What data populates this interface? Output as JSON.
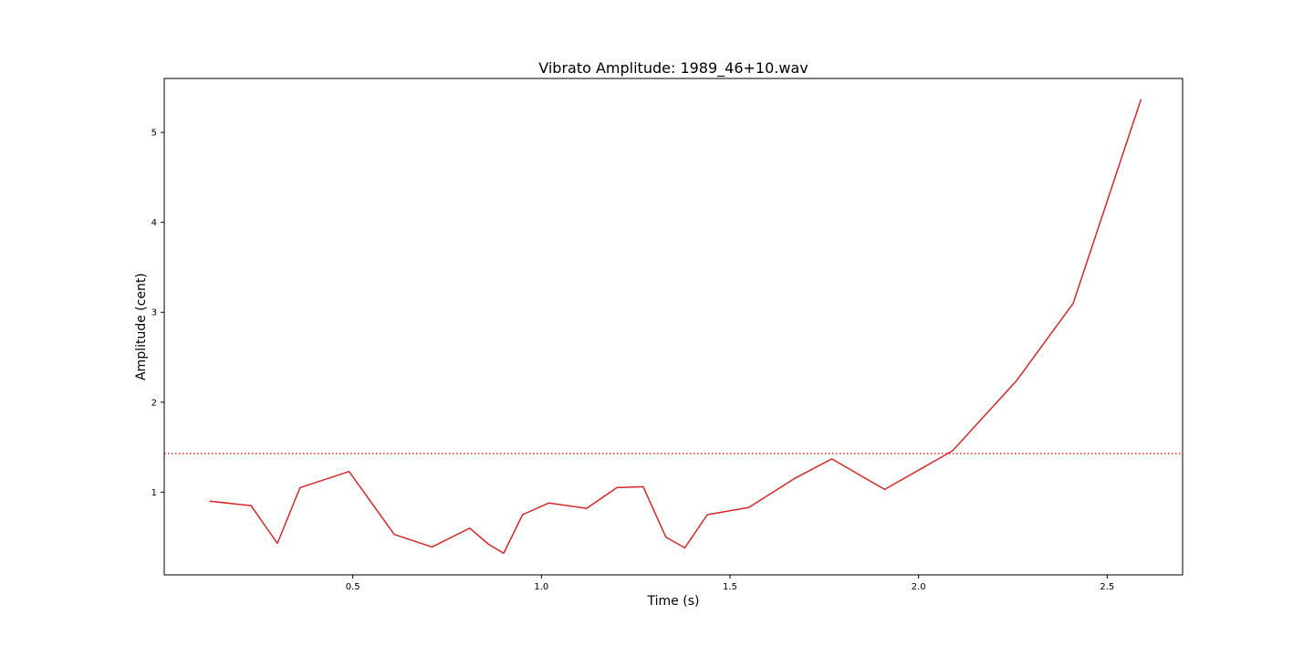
{
  "chart_data": {
    "type": "line",
    "title": "Vibrato Amplitude: 1989_46+10.wav",
    "xlabel": "Time (s)",
    "ylabel": "Amplitude (cent)",
    "xlim": [
      -0.0,
      2.7
    ],
    "ylim": [
      0.08,
      5.6
    ],
    "x_ticks": [
      {
        "value": 0.5,
        "label": "0.5"
      },
      {
        "value": 1.0,
        "label": "1.0"
      },
      {
        "value": 1.5,
        "label": "1.5"
      },
      {
        "value": 2.0,
        "label": "2.0"
      },
      {
        "value": 2.5,
        "label": "2.5"
      }
    ],
    "y_ticks": [
      {
        "value": 1,
        "label": "1"
      },
      {
        "value": 2,
        "label": "2"
      },
      {
        "value": 3,
        "label": "3"
      },
      {
        "value": 4,
        "label": "4"
      },
      {
        "value": 5,
        "label": "5"
      }
    ],
    "grid": false,
    "series": [
      {
        "color": "#d62728",
        "style": "solid",
        "x": [
          0.12,
          0.23,
          0.3,
          0.36,
          0.49,
          0.61,
          0.71,
          0.81,
          0.86,
          0.9,
          0.95,
          1.02,
          1.12,
          1.2,
          1.27,
          1.33,
          1.38,
          1.44,
          1.55,
          1.67,
          1.77,
          1.91,
          2.09,
          2.26,
          2.41,
          2.59
        ],
        "y": [
          0.9,
          0.85,
          0.43,
          1.05,
          1.23,
          0.53,
          0.39,
          0.6,
          0.42,
          0.32,
          0.75,
          0.88,
          0.82,
          1.05,
          1.06,
          0.5,
          0.38,
          0.75,
          0.83,
          1.15,
          1.37,
          1.03,
          1.46,
          2.24,
          3.1,
          5.37
        ]
      }
    ],
    "reference_lines": [
      {
        "y": 1.43,
        "color": "#d62728",
        "style": "dotted"
      }
    ]
  }
}
